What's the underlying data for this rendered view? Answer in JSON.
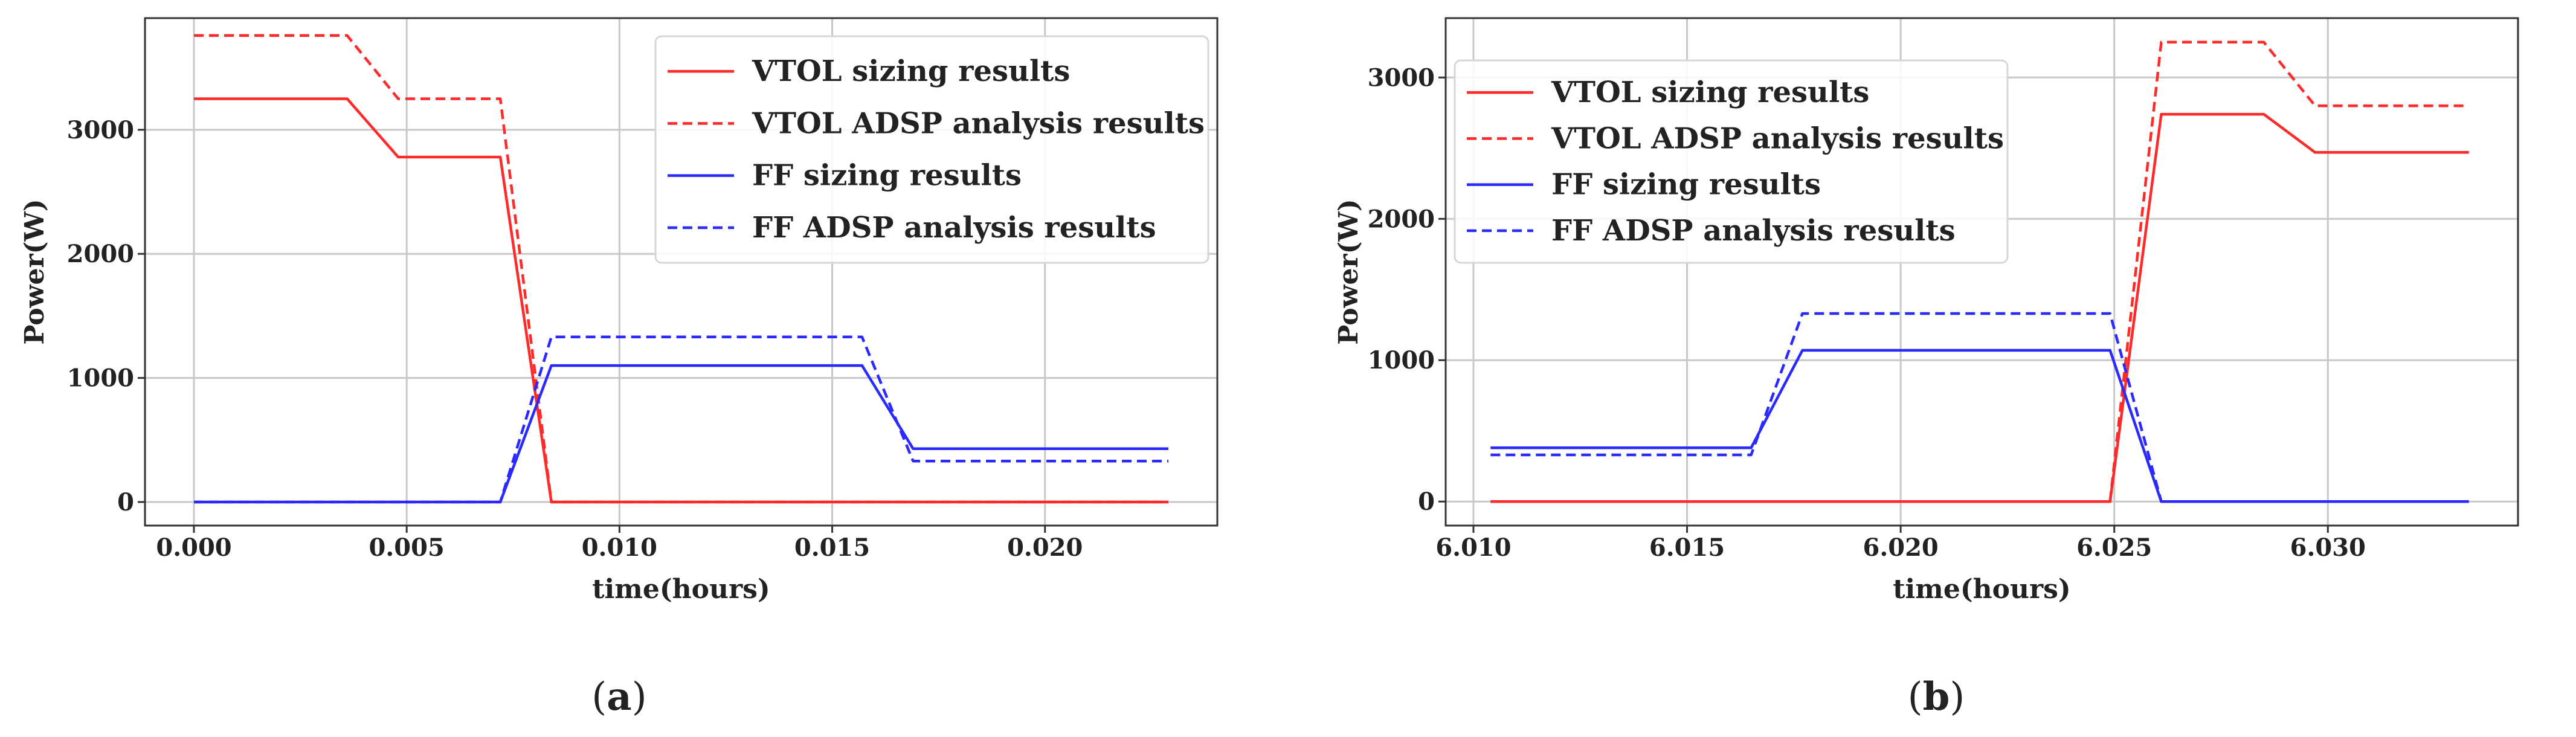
{
  "figure": {
    "panels": [
      {
        "label_open": "(",
        "letter": "a",
        "label_close": ")"
      },
      {
        "label_open": "(",
        "letter": "b",
        "label_close": ")"
      }
    ]
  },
  "chart_data": [
    {
      "type": "line",
      "title": "",
      "xlabel": "time(hours)",
      "ylabel": "Power(W)",
      "xlim": [
        -0.00115,
        0.02405
      ],
      "ylim": [
        -190,
        3900
      ],
      "xticks": [
        0.0,
        0.005,
        0.01,
        0.015,
        0.02
      ],
      "xtick_labels": [
        "0.000",
        "0.005",
        "0.010",
        "0.015",
        "0.020"
      ],
      "yticks": [
        0,
        1000,
        2000,
        3000
      ],
      "ytick_labels": [
        "0",
        "1000",
        "2000",
        "3000"
      ],
      "grid": true,
      "legend_location": "upper right",
      "series": [
        {
          "name": "VTOL sizing results",
          "color": "#ff2a2a",
          "style": "solid",
          "x": [
            0.0,
            0.0036,
            0.0048,
            0.0072,
            0.0084,
            0.0229
          ],
          "y": [
            3250,
            3250,
            2780,
            2780,
            0,
            0
          ]
        },
        {
          "name": "VTOL ADSP analysis results",
          "color": "#ff2a2a",
          "style": "dashed",
          "x": [
            0.0,
            0.0036,
            0.0048,
            0.0072,
            0.0084,
            0.0229
          ],
          "y": [
            3760,
            3760,
            3250,
            3250,
            0,
            0
          ]
        },
        {
          "name": "FF sizing results",
          "color": "#2a2aff",
          "style": "solid",
          "x": [
            0.0,
            0.0072,
            0.0084,
            0.0157,
            0.0169,
            0.0229
          ],
          "y": [
            0,
            0,
            1100,
            1100,
            430,
            430
          ]
        },
        {
          "name": "FF ADSP analysis results",
          "color": "#2a2aff",
          "style": "dashed",
          "x": [
            0.0,
            0.0072,
            0.0084,
            0.0157,
            0.0169,
            0.0229
          ],
          "y": [
            0,
            0,
            1330,
            1330,
            330,
            330
          ]
        }
      ]
    },
    {
      "type": "line",
      "title": "",
      "xlabel": "time(hours)",
      "ylabel": "Power(W)",
      "xlim": [
        6.00935,
        6.03445
      ],
      "ylim": [
        -170,
        3420
      ],
      "xticks": [
        6.01,
        6.015,
        6.02,
        6.025,
        6.03
      ],
      "xtick_labels": [
        "6.010",
        "6.015",
        "6.020",
        "6.025",
        "6.030"
      ],
      "yticks": [
        0,
        1000,
        2000,
        3000
      ],
      "ytick_labels": [
        "0",
        "1000",
        "2000",
        "3000"
      ],
      "grid": true,
      "legend_location": "upper left",
      "series": [
        {
          "name": "VTOL sizing results",
          "color": "#ff2a2a",
          "style": "solid",
          "x": [
            6.0104,
            6.0249,
            6.0261,
            6.0285,
            6.0297,
            6.0333
          ],
          "y": [
            0,
            0,
            2740,
            2740,
            2470,
            2470
          ]
        },
        {
          "name": "VTOL ADSP analysis results",
          "color": "#ff2a2a",
          "style": "dashed",
          "x": [
            6.0104,
            6.0249,
            6.0261,
            6.0285,
            6.0297,
            6.0333
          ],
          "y": [
            0,
            0,
            3250,
            3250,
            2800,
            2800
          ]
        },
        {
          "name": "FF sizing results",
          "color": "#2a2aff",
          "style": "solid",
          "x": [
            6.0104,
            6.0165,
            6.0177,
            6.0249,
            6.0261,
            6.0333
          ],
          "y": [
            380,
            380,
            1070,
            1070,
            0,
            0
          ]
        },
        {
          "name": "FF ADSP analysis results",
          "color": "#2a2aff",
          "style": "dashed",
          "x": [
            6.0104,
            6.0165,
            6.0177,
            6.0249,
            6.0261,
            6.0333
          ],
          "y": [
            330,
            330,
            1330,
            1330,
            0,
            0
          ]
        }
      ]
    }
  ]
}
